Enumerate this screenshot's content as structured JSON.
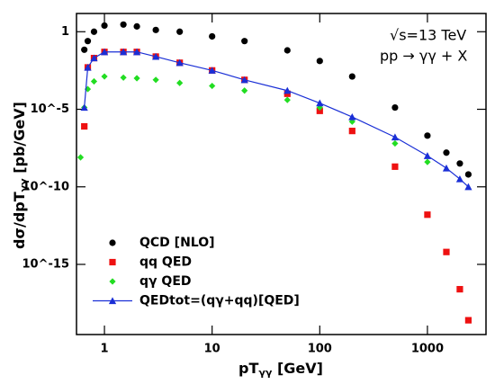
{
  "chart_data": {
    "type": "scatter",
    "x_label": {
      "main": "pT",
      "sub": "γγ",
      "unit": " [GeV]"
    },
    "y_label": {
      "main": "dσ/dpT",
      "sub": "γγ",
      "unit": " [pb/GeV]"
    },
    "annotations": [
      "√s=13 TeV",
      "pp → γγ + X"
    ],
    "log_x": true,
    "log_y": true,
    "xlim": [
      0.55,
      3500
    ],
    "ylim": [
      3e-20,
      15
    ],
    "xticks": [
      1,
      10,
      100,
      1000
    ],
    "yticks": [
      1,
      {
        "value": 1e-05,
        "label": "10^-5"
      },
      {
        "value": 1e-10,
        "label": "10^-10"
      },
      {
        "value": 1e-15,
        "label": "10^-15"
      }
    ],
    "legend": "lower left",
    "x": [
      0.6,
      0.65,
      0.7,
      0.8,
      1,
      1.5,
      2,
      3,
      5,
      10,
      20,
      50,
      100,
      200,
      500,
      1000,
      1500,
      2000,
      2400
    ],
    "series": [
      {
        "name": "QCD [NLO]",
        "color": "#000000",
        "marker": "circle",
        "values": [
          null,
          0.069,
          0.25,
          1,
          2.5,
          2.9,
          2.2,
          1.3,
          1,
          0.5,
          0.25,
          0.063,
          0.013,
          0.0013,
          1.3e-05,
          2e-07,
          1.6e-08,
          3.2e-09,
          6.3e-10
        ]
      },
      {
        "name": "qq QED",
        "color": "#ee1111",
        "marker": "square",
        "values": [
          null,
          7.9e-07,
          0.005,
          0.02,
          0.05,
          0.05,
          0.05,
          0.025,
          0.01,
          0.0032,
          0.00079,
          0.0001,
          7.9e-06,
          4e-07,
          2e-09,
          1.6e-12,
          6.3e-15,
          2.5e-17,
          2.5e-19
        ]
      },
      {
        "name": "qγ QED",
        "color": "#22dd22",
        "marker": "diamond",
        "values": [
          7.9e-09,
          1.3e-05,
          0.0002,
          0.00063,
          0.0013,
          0.0011,
          0.001,
          0.00079,
          0.0005,
          0.00032,
          0.00016,
          4e-05,
          1.3e-05,
          1.6e-06,
          6.3e-08,
          4e-09,
          null,
          null,
          null
        ]
      },
      {
        "name": "QEDtot=(qγ+qq)[QED]",
        "color": "#1a2fd6",
        "marker": "triangle",
        "line": true,
        "values": [
          null,
          1.3e-05,
          0.005,
          0.02,
          0.05,
          0.05,
          0.05,
          0.025,
          0.01,
          0.0032,
          0.00079,
          0.00016,
          2.5e-05,
          3.2e-06,
          1.6e-07,
          1e-08,
          1.6e-09,
          3.2e-10,
          1e-10
        ]
      }
    ]
  }
}
